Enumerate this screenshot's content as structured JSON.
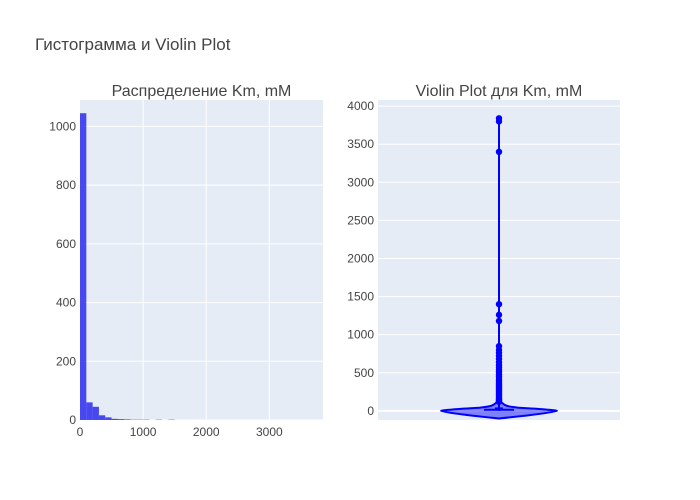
{
  "title": "Гистограмма и Violin Plot",
  "chart_data": [
    {
      "type": "bar",
      "title": "Распределение Km, mM",
      "xlabel": "",
      "ylabel": "",
      "color": "#1f1fef",
      "xlim": [
        0,
        3850
      ],
      "ylim": [
        0,
        1090
      ],
      "bin_width": 100,
      "bin_starts": [
        0,
        100,
        200,
        300,
        400,
        500,
        600,
        700,
        800,
        900,
        1000,
        1100,
        1200,
        1300,
        1400
      ],
      "values": [
        1045,
        60,
        45,
        16,
        9,
        4,
        3,
        2,
        1,
        1,
        1,
        0,
        1,
        0,
        1
      ],
      "x_ticks": [
        0,
        1000,
        2000,
        3000
      ],
      "y_ticks": [
        0,
        200,
        400,
        600,
        800,
        1000
      ],
      "grid": true
    },
    {
      "type": "violin",
      "title": "Violin Plot для Km, mM",
      "xlabel": "",
      "ylabel": "",
      "color": "#0000ff",
      "ylim": [
        -120,
        4080
      ],
      "y_ticks": [
        0,
        500,
        1000,
        1500,
        2000,
        2500,
        3000,
        3500,
        4000
      ],
      "quartiles": {
        "q1": 4,
        "median": 15,
        "q3": 45
      },
      "whisker_max": 3840,
      "outliers": [
        3840,
        3800,
        3400,
        1400,
        1260,
        1180,
        850,
        800,
        760,
        720,
        680,
        640,
        600,
        570,
        540,
        510,
        480,
        450,
        420,
        400,
        380,
        360,
        340,
        320,
        300,
        280,
        260,
        240,
        220,
        200,
        180,
        160,
        150,
        140,
        130,
        120
      ],
      "grid": true
    }
  ]
}
